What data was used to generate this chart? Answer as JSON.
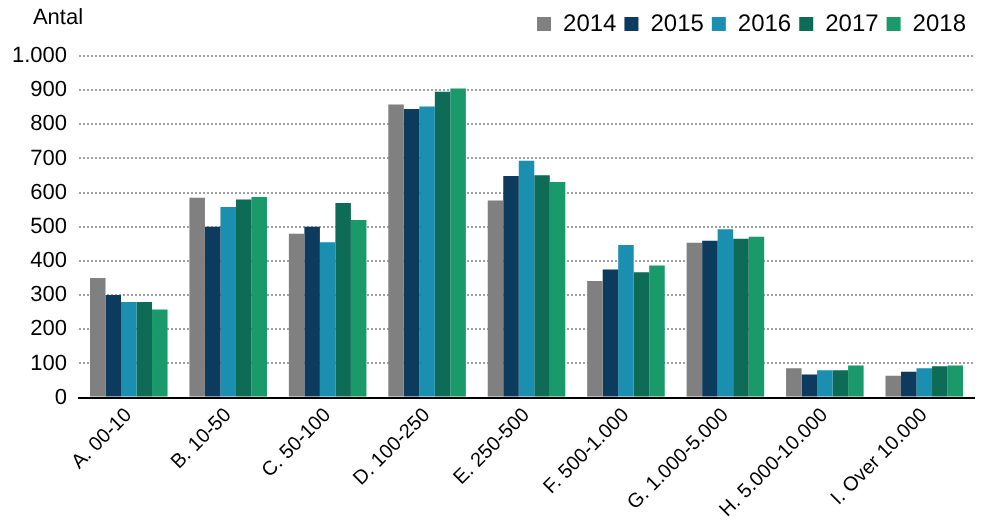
{
  "chart_data": {
    "type": "bar",
    "ylabel": "Antal",
    "categories": [
      "A. 00-10",
      "B. 10-50",
      "C. 50-100",
      "D. 100-250",
      "E. 250-500",
      "F. 500-1.000",
      "G. 1.000-5.000",
      "H. 5.000-10.000",
      "I. Over 10.000"
    ],
    "series": [
      {
        "name": "2014",
        "color": "#808080",
        "values": [
          350,
          585,
          480,
          858,
          577,
          341,
          453,
          86,
          64
        ]
      },
      {
        "name": "2015",
        "color": "#0d3b5e",
        "values": [
          300,
          500,
          500,
          845,
          649,
          375,
          459,
          68,
          76
        ]
      },
      {
        "name": "2016",
        "color": "#1a8fb0",
        "values": [
          280,
          558,
          455,
          852,
          693,
          447,
          493,
          80,
          86
        ]
      },
      {
        "name": "2017",
        "color": "#0e6b55",
        "values": [
          280,
          580,
          570,
          895,
          651,
          367,
          465,
          80,
          92
        ]
      },
      {
        "name": "2018",
        "color": "#1a9a6a",
        "values": [
          258,
          587,
          520,
          905,
          631,
          387,
          471,
          94,
          94
        ]
      }
    ],
    "ylim": [
      0,
      1000
    ],
    "yticks": [
      0,
      100,
      200,
      300,
      400,
      500,
      600,
      700,
      800,
      900,
      {
        "value": 1000,
        "label": "1.000"
      }
    ],
    "grid": "y",
    "legend": "top right"
  }
}
